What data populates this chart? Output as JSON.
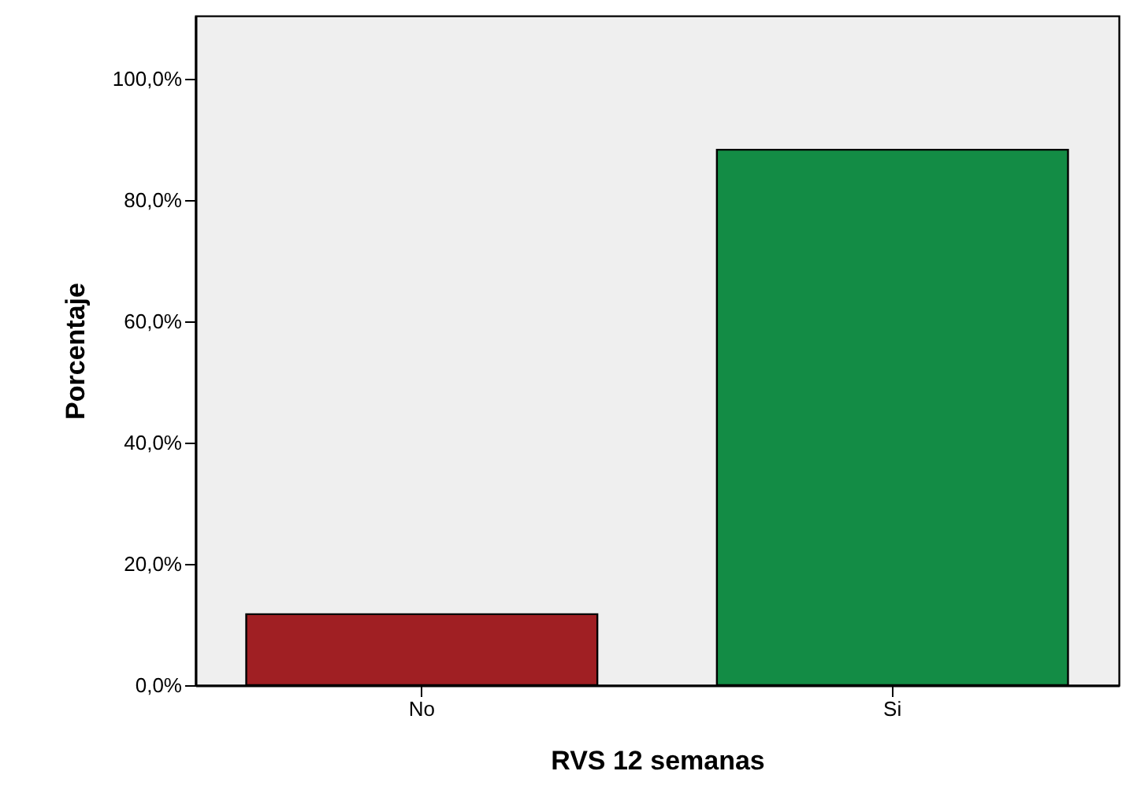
{
  "chart_data": {
    "type": "bar",
    "xlabel": "RVS 12 semanas",
    "ylabel": "Porcentaje",
    "categories": [
      "No",
      "Si"
    ],
    "values": [
      11.7,
      88.3
    ],
    "colors": [
      "#a01f23",
      "#138c45"
    ],
    "ylim": [
      0,
      110.4
    ],
    "yticks": [
      {
        "value": 0,
        "label": "0,0%"
      },
      {
        "value": 20,
        "label": "20,0%"
      },
      {
        "value": 40,
        "label": "40,0%"
      },
      {
        "value": 60,
        "label": "60,0%"
      },
      {
        "value": 80,
        "label": "80,0%"
      },
      {
        "value": 100,
        "label": "100,0%"
      }
    ],
    "grid": false
  }
}
